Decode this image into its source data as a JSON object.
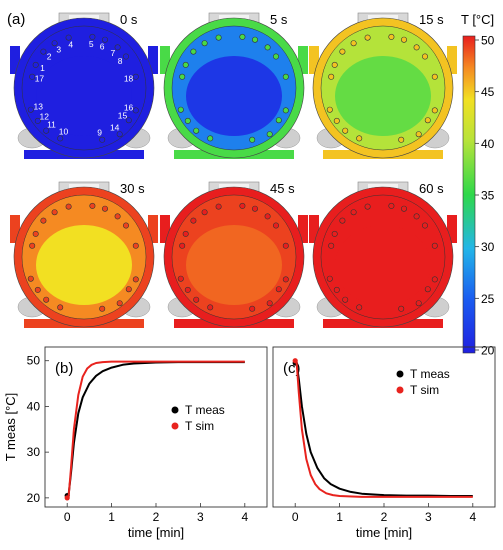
{
  "panel_a": {
    "label": "(a)",
    "snapshots": [
      {
        "time": "0 s",
        "temps": {
          "outer": 20,
          "inner": 20,
          "core": 20
        }
      },
      {
        "time": "5 s",
        "temps": {
          "outer": 36,
          "inner": 27,
          "core": 22
        }
      },
      {
        "time": "15 s",
        "temps": {
          "outer": 45,
          "inner": 40,
          "core": 37
        }
      },
      {
        "time": "30 s",
        "temps": {
          "outer": 49,
          "inner": 47,
          "core": 44
        }
      },
      {
        "time": "45 s",
        "temps": {
          "outer": 50,
          "inner": 49,
          "core": 48
        }
      },
      {
        "time": "60 s",
        "temps": {
          "outer": 50,
          "inner": 50,
          "core": 50
        }
      }
    ],
    "sensor_labels": [
      "1",
      "2",
      "3",
      "4",
      "5",
      "6",
      "7",
      "8",
      "9",
      "10",
      "11",
      "12",
      "13",
      "14",
      "15",
      "16",
      "17",
      "18"
    ],
    "colorbar": {
      "title": "T [°C]",
      "ticks": [
        "50",
        "45",
        "40",
        "35",
        "30",
        "25",
        "20"
      ],
      "min": 20,
      "max": 50
    }
  },
  "chart_data": [
    {
      "type": "line",
      "panel": "(b)",
      "xlabel": "time [min]",
      "ylabel": "T meas [°C]",
      "xlim": [
        -0.5,
        4.5
      ],
      "ylim": [
        18,
        53
      ],
      "xticks": [
        "0",
        "1",
        "2",
        "3",
        "4"
      ],
      "yticks": [
        "20",
        "30",
        "40",
        "50"
      ],
      "legend": "center-right",
      "series": [
        {
          "name": "T meas",
          "color": "#000000",
          "x": [
            0,
            0.03,
            0.08,
            0.15,
            0.25,
            0.35,
            0.5,
            0.65,
            0.8,
            1.0,
            1.25,
            1.5,
            2.0,
            2.5,
            3.0,
            3.5,
            4.0
          ],
          "y": [
            20.5,
            20.5,
            25,
            32,
            38.5,
            42,
            45,
            46.7,
            47.7,
            48.5,
            49.1,
            49.4,
            49.6,
            49.7,
            49.7,
            49.7,
            49.7
          ]
        },
        {
          "name": "T sim",
          "color": "#e8231e",
          "x": [
            0,
            0.03,
            0.08,
            0.15,
            0.25,
            0.35,
            0.45,
            0.55,
            0.65,
            0.8,
            1.0,
            1.5,
            2.0,
            3.0,
            4.0
          ],
          "y": [
            20,
            20,
            26,
            35,
            42.5,
            46.5,
            48.3,
            49.1,
            49.5,
            49.7,
            49.8,
            49.8,
            49.8,
            49.8,
            49.8
          ]
        }
      ]
    },
    {
      "type": "line",
      "panel": "(c)",
      "xlabel": "time [min]",
      "ylabel": "",
      "xlim": [
        -0.5,
        4.5
      ],
      "ylim": [
        18,
        53
      ],
      "xticks": [
        "0",
        "1",
        "2",
        "3",
        "4"
      ],
      "legend": "top-right",
      "series": [
        {
          "name": "T meas",
          "color": "#000000",
          "x": [
            0,
            0.03,
            0.08,
            0.15,
            0.25,
            0.35,
            0.5,
            0.65,
            0.8,
            1.0,
            1.25,
            1.5,
            2.0,
            2.5,
            3.0,
            3.5,
            4.0
          ],
          "y": [
            49.5,
            49.5,
            46,
            40,
            34,
            30,
            26.5,
            24.3,
            23,
            22,
            21.3,
            20.9,
            20.6,
            20.5,
            20.5,
            20.4,
            20.4
          ]
        },
        {
          "name": "T sim",
          "color": "#e8231e",
          "x": [
            0,
            0.03,
            0.08,
            0.15,
            0.25,
            0.35,
            0.45,
            0.55,
            0.7,
            0.85,
            1.0,
            1.5,
            2.0,
            3.0,
            4.0
          ],
          "y": [
            50,
            50,
            43,
            35,
            28.5,
            25,
            23,
            21.9,
            21,
            20.6,
            20.4,
            20.2,
            20.2,
            20.2,
            20.2
          ]
        }
      ]
    }
  ]
}
